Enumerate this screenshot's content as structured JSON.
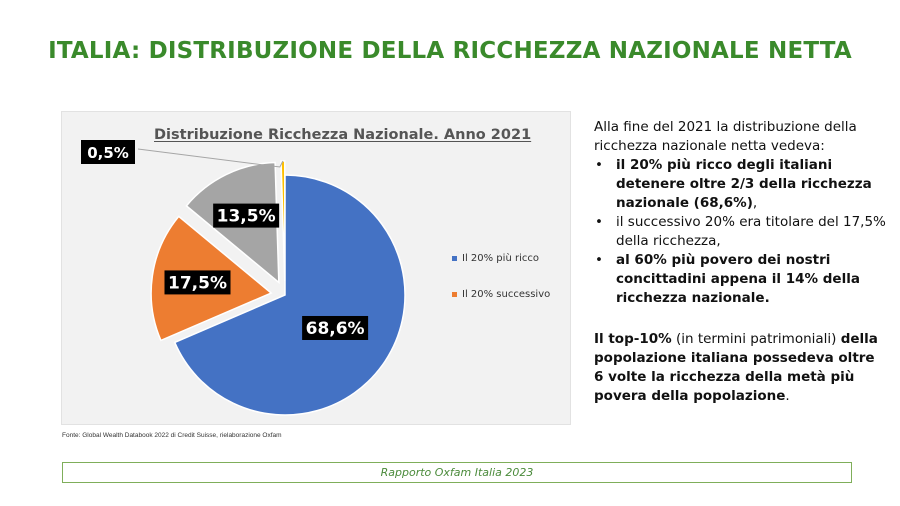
{
  "slide": {
    "title": "ITALIA: DISTRIBUZIONE DELLA RICCHEZZA NAZIONALE NETTA",
    "source": "Fonte: Global Wealth Databook 2022 di Credit Suisse, rielaborazione Oxfam",
    "footer": "Rapporto Oxfam Italia 2023"
  },
  "chart_data": {
    "type": "pie",
    "title": "Distribuzione Ricchezza Nazionale. Anno 2021",
    "slices": [
      {
        "label": "Il 20% più ricco",
        "value": 68.6,
        "data_label": "68,6%",
        "color": "#4472c4",
        "exploded": false
      },
      {
        "label": "Il 20% successivo",
        "value": 17.5,
        "data_label": "17,5%",
        "color": "#ed7d31",
        "exploded": true
      },
      {
        "label": "",
        "value": 13.5,
        "data_label": "13,5%",
        "color": "#a5a5a5",
        "exploded": true
      },
      {
        "label": "",
        "value": 0.5,
        "data_label": "0,5%",
        "color": "#ffc000",
        "exploded": true
      }
    ],
    "legend": {
      "placement": "right",
      "items": [
        "Il 20% più ricco",
        "Il 20% successivo"
      ]
    }
  },
  "side_text": {
    "intro": "Alla fine del 2021 la distribuzione della ricchezza nazionale netta vedeva:",
    "bullets": [
      {
        "text": "il 20% più ricco degli italiani detenere oltre 2/3 della ricchezza nazionale (68,6%)",
        "suffix": ",",
        "bold": true
      },
      {
        "text": "il successivo 20% era titolare del 17,5% della ricchezza,",
        "suffix": "",
        "bold": false
      },
      {
        "text": "al 60% più povero dei nostri concittadini appena il 14% della ricchezza nazionale.",
        "suffix": "",
        "bold": true
      }
    ],
    "closing": {
      "part1": "Il top-10%",
      "part2": " (in termini patrimoniali) ",
      "part3": "della popolazione italiana possedeva oltre 6 volte la ricchezza della metà più povera della popolazione",
      "part4": "."
    }
  }
}
